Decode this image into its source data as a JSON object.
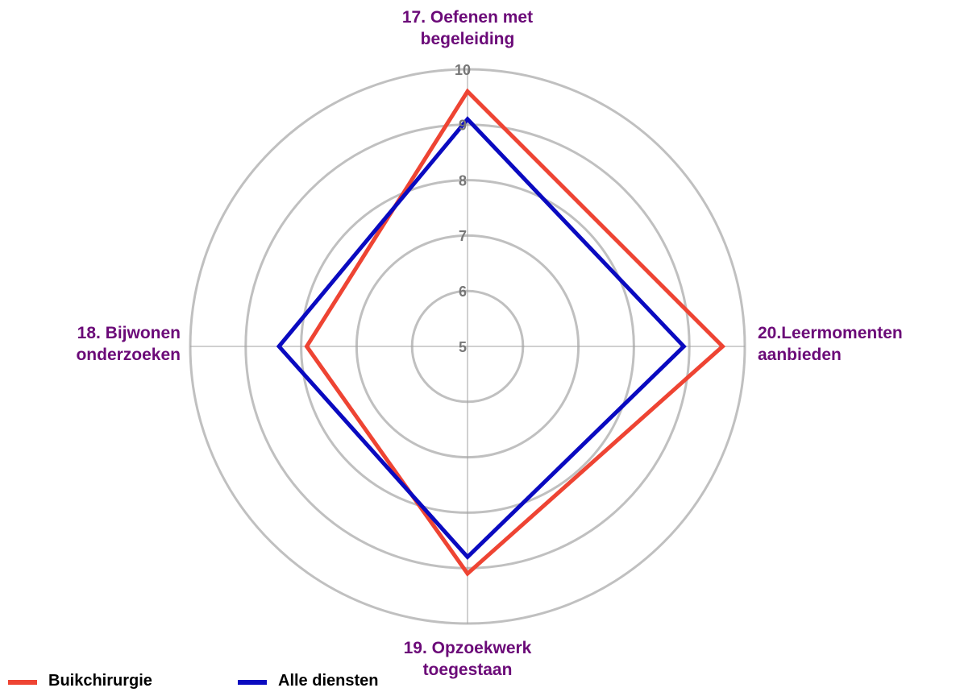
{
  "chart_data": {
    "type": "radar",
    "categories": [
      "17. Oefenen met begeleiding",
      "18. Bijwonen onderzoeken",
      "19. Opzoekwerk toegestaan",
      "20.Leermomenten aanbieden"
    ],
    "series": [
      {
        "name": "Buikchirurgie",
        "color": "#ee4433",
        "values": [
          9.6,
          7.9,
          9.1,
          9.6
        ]
      },
      {
        "name": "Alle diensten",
        "color": "#0a0ac0",
        "values": [
          9.1,
          8.4,
          8.8,
          8.9
        ]
      }
    ],
    "rlim": [
      5,
      10
    ],
    "rticks": [
      5,
      6,
      7,
      8,
      9,
      10
    ],
    "grid": true,
    "legend": "bottom"
  }
}
